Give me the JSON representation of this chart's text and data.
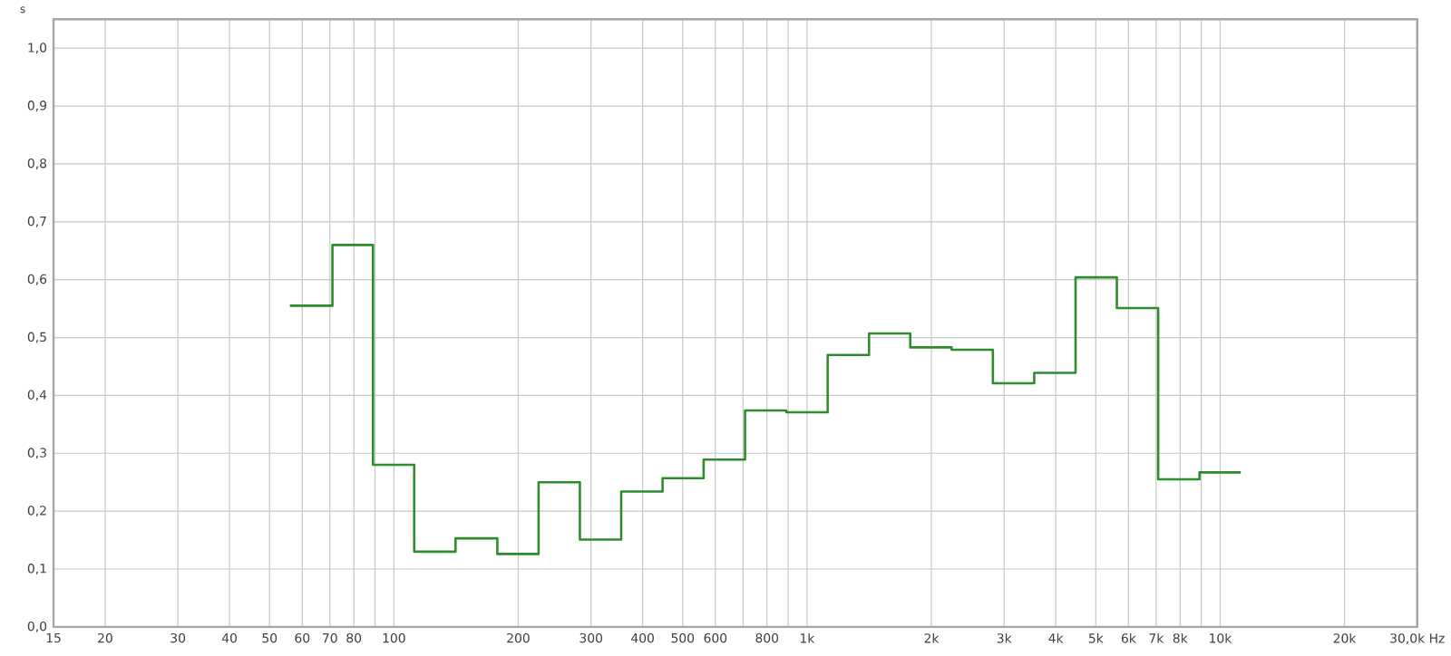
{
  "chart_data": {
    "type": "step",
    "ylabel": "s",
    "log": "x",
    "grid": true,
    "xlim": [
      15,
      30000
    ],
    "ylim": [
      0,
      1.05
    ],
    "xticks": [
      15,
      20,
      30,
      40,
      50,
      60,
      70,
      80,
      {
        "value": 90,
        "label": null
      },
      100,
      200,
      300,
      400,
      500,
      600,
      {
        "value": 700,
        "label": null
      },
      800,
      {
        "value": 900,
        "label": null
      },
      {
        "value": 1000,
        "label": "1k"
      },
      {
        "value": 2000,
        "label": "2k"
      },
      {
        "value": 3000,
        "label": "3k"
      },
      {
        "value": 4000,
        "label": "4k"
      },
      {
        "value": 5000,
        "label": "5k"
      },
      {
        "value": 6000,
        "label": "6k"
      },
      {
        "value": 7000,
        "label": "7k"
      },
      {
        "value": 8000,
        "label": "8k"
      },
      {
        "value": 9000,
        "label": null
      },
      {
        "value": 10000,
        "label": "10k"
      },
      {
        "value": 20000,
        "label": "20k"
      },
      {
        "value": 30000,
        "label": "30,0k Hz"
      }
    ],
    "yticks": [
      {
        "value": 0,
        "label": "0,0"
      },
      {
        "value": 0.1,
        "label": "0,1"
      },
      {
        "value": 0.2,
        "label": "0,2"
      },
      {
        "value": 0.3,
        "label": "0,3"
      },
      {
        "value": 0.4,
        "label": "0,4"
      },
      {
        "value": 0.5,
        "label": "0,5"
      },
      {
        "value": 0.6,
        "label": "0,6"
      },
      {
        "value": 0.7,
        "label": "0,7"
      },
      {
        "value": 0.8,
        "label": "0,8"
      },
      {
        "value": 0.9,
        "label": "0,9"
      },
      {
        "value": 1.0,
        "label": "1,0"
      }
    ],
    "series": [
      {
        "color": "#2e8b2e",
        "x": [
          56,
          71,
          89,
          112,
          141,
          178,
          224,
          282,
          355,
          447,
          562,
          708,
          891,
          1122,
          1413,
          1778,
          2239,
          2818,
          3548,
          4467,
          5623,
          7079,
          8913,
          11220
        ],
        "values": [
          0.555,
          0.66,
          0.28,
          0.13,
          0.153,
          0.126,
          0.25,
          0.151,
          0.234,
          0.257,
          0.289,
          0.374,
          0.371,
          0.47,
          0.507,
          0.483,
          0.479,
          0.421,
          0.439,
          0.604,
          0.551,
          0.255,
          0.267,
          0.267
        ]
      }
    ]
  }
}
